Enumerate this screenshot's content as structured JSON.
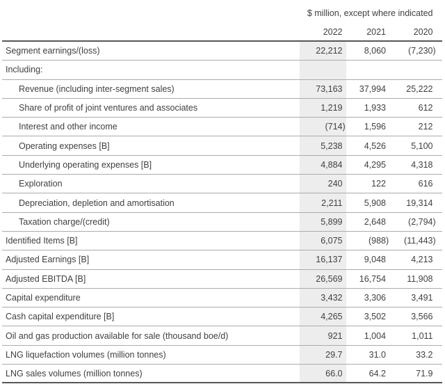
{
  "table": {
    "unit_note": "$ million, except where indicated",
    "columns": [
      "2022",
      "2021",
      "2020"
    ],
    "rows": [
      {
        "label": "Segment earnings/(loss)",
        "indent": false,
        "values": [
          "22,212",
          "8,060",
          "(7,230)"
        ]
      },
      {
        "label": "Including:",
        "indent": false,
        "values": [
          "",
          "",
          ""
        ]
      },
      {
        "label": "Revenue (including inter-segment sales)",
        "indent": true,
        "values": [
          "73,163",
          "37,994",
          "25,222"
        ]
      },
      {
        "label": "Share of profit of joint ventures and associates",
        "indent": true,
        "values": [
          "1,219",
          "1,933",
          "612"
        ]
      },
      {
        "label": "Interest and other income",
        "indent": true,
        "values": [
          "(714)",
          "1,596",
          "212"
        ]
      },
      {
        "label": "Operating expenses [B]",
        "indent": true,
        "values": [
          "5,238",
          "4,526",
          "5,100"
        ]
      },
      {
        "label": "Underlying operating expenses [B]",
        "indent": true,
        "values": [
          "4,884",
          "4,295",
          "4,318"
        ]
      },
      {
        "label": "Exploration",
        "indent": true,
        "values": [
          "240",
          "122",
          "616"
        ]
      },
      {
        "label": "Depreciation, depletion and amortisation",
        "indent": true,
        "values": [
          "2,211",
          "5,908",
          "19,314"
        ]
      },
      {
        "label": "Taxation charge/(credit)",
        "indent": true,
        "values": [
          "5,899",
          "2,648",
          "(2,794)"
        ]
      },
      {
        "label": "Identified Items [B]",
        "indent": false,
        "values": [
          "6,075",
          "(988)",
          "(11,443)"
        ]
      },
      {
        "label": "Adjusted Earnings [B]",
        "indent": false,
        "values": [
          "16,137",
          "9,048",
          "4,213"
        ]
      },
      {
        "label": "Adjusted EBITDA [B]",
        "indent": false,
        "values": [
          "26,569",
          "16,754",
          "11,908"
        ]
      },
      {
        "label": "Capital expenditure",
        "indent": false,
        "values": [
          "3,432",
          "3,306",
          "3,491"
        ]
      },
      {
        "label": "Cash capital expenditure [B]",
        "indent": false,
        "values": [
          "4,265",
          "3,502",
          "3,566"
        ]
      },
      {
        "label": "Oil and gas production available for sale (thousand boe/d)",
        "indent": false,
        "values": [
          "921",
          "1,004",
          "1,011"
        ]
      },
      {
        "label": "LNG liquefaction volumes (million tonnes)",
        "indent": false,
        "values": [
          "29.7",
          "31.0",
          "33.2"
        ]
      },
      {
        "label": "LNG sales volumes (million tonnes)",
        "indent": false,
        "values": [
          "66.0",
          "64.2",
          "71.9"
        ]
      }
    ],
    "colors": {
      "text": "#3f3f3f",
      "highlight_column_bg": "#ededed",
      "row_divider": "#ababab",
      "strong_rule": "#575757"
    }
  }
}
